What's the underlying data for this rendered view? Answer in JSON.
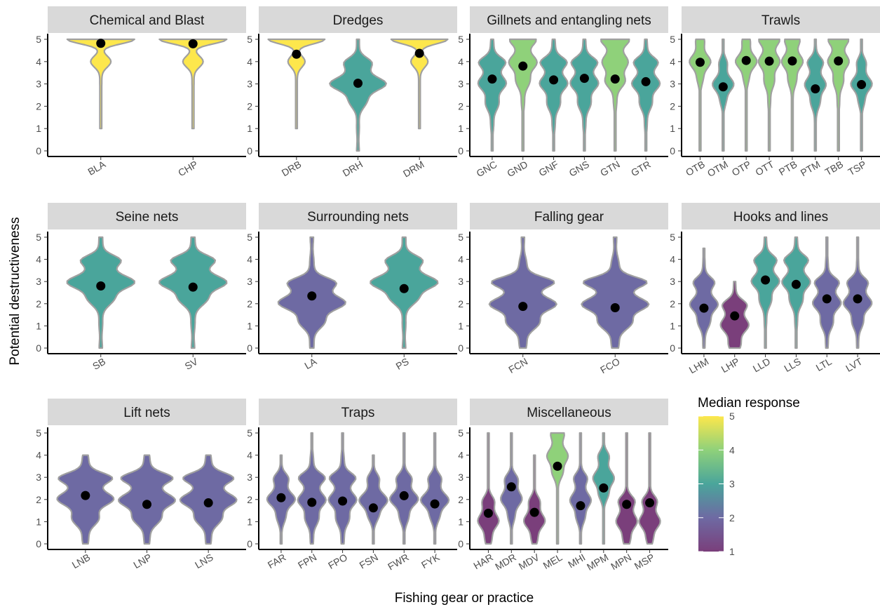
{
  "chart_data": {
    "type": "violin",
    "xlabel": "Fishing gear or practice",
    "ylabel": "Potential destructiveness",
    "ylim": [
      0,
      5
    ],
    "yticks": [
      0,
      1,
      2,
      3,
      4,
      5
    ],
    "legend": {
      "title": "Median response",
      "ticks": [
        1,
        2,
        3,
        4,
        5
      ],
      "range": [
        1,
        5
      ],
      "colors": [
        "#7a3f7b",
        "#6e6aa3",
        "#4aa59b",
        "#8fd17a",
        "#fde74c"
      ],
      "placement": "bottom-right"
    },
    "point_color": "#000000",
    "violin_outline": "#a0a0a0",
    "panels": [
      {
        "title": "Chemical and Blast",
        "categories": [
          "BLA",
          "CHP"
        ],
        "medians": [
          5,
          5
        ],
        "means": [
          4.82,
          4.8
        ],
        "ranges": [
          [
            1,
            5
          ],
          [
            1,
            5
          ]
        ]
      },
      {
        "title": "Dredges",
        "categories": [
          "DRB",
          "DRH",
          "DRM"
        ],
        "medians": [
          5,
          3,
          5
        ],
        "means": [
          4.33,
          3.03,
          4.37
        ],
        "ranges": [
          [
            1,
            5
          ],
          [
            0,
            5
          ],
          [
            1,
            5
          ]
        ]
      },
      {
        "title": "Gillnets and entangling nets",
        "categories": [
          "GNC",
          "GND",
          "GNF",
          "GNS",
          "GTN",
          "GTR"
        ],
        "medians": [
          3,
          4,
          3,
          3,
          4,
          3
        ],
        "means": [
          3.22,
          3.8,
          3.18,
          3.25,
          3.22,
          3.1
        ],
        "ranges": [
          [
            0,
            5
          ],
          [
            0,
            5
          ],
          [
            0,
            5
          ],
          [
            0,
            5
          ],
          [
            0,
            5
          ],
          [
            0,
            5
          ]
        ]
      },
      {
        "title": "Trawls",
        "categories": [
          "OTB",
          "OTM",
          "OTP",
          "OTT",
          "PTB",
          "PTM",
          "TBB",
          "TSP"
        ],
        "medians": [
          4,
          3,
          4,
          4,
          4,
          3,
          4,
          3
        ],
        "means": [
          3.97,
          2.87,
          4.05,
          4.02,
          4.03,
          2.78,
          4.03,
          2.97
        ],
        "ranges": [
          [
            0,
            5
          ],
          [
            0,
            5
          ],
          [
            0,
            5
          ],
          [
            0,
            5
          ],
          [
            0,
            5
          ],
          [
            0,
            5
          ],
          [
            0,
            5
          ],
          [
            0,
            5
          ]
        ]
      },
      {
        "title": "Seine nets",
        "categories": [
          "SB",
          "SV"
        ],
        "medians": [
          3,
          3
        ],
        "means": [
          2.8,
          2.75
        ],
        "ranges": [
          [
            0,
            5
          ],
          [
            0,
            5
          ]
        ]
      },
      {
        "title": "Surrounding nets",
        "categories": [
          "LA",
          "PS"
        ],
        "medians": [
          2,
          3
        ],
        "means": [
          2.35,
          2.68
        ],
        "ranges": [
          [
            0,
            5
          ],
          [
            0,
            5
          ]
        ]
      },
      {
        "title": "Falling gear",
        "categories": [
          "FCN",
          "FCO"
        ],
        "medians": [
          2,
          2
        ],
        "means": [
          1.88,
          1.82
        ],
        "ranges": [
          [
            0,
            5
          ],
          [
            0,
            5
          ]
        ]
      },
      {
        "title": "Hooks and lines",
        "categories": [
          "LHM",
          "LHP",
          "LLD",
          "LLS",
          "LTL",
          "LVT"
        ],
        "medians": [
          2,
          1,
          3,
          3,
          2,
          2
        ],
        "means": [
          1.8,
          1.45,
          3.07,
          2.87,
          2.22,
          2.22
        ],
        "ranges": [
          [
            0,
            4.5
          ],
          [
            0,
            3
          ],
          [
            0,
            5
          ],
          [
            0,
            5
          ],
          [
            0,
            5
          ],
          [
            0,
            5
          ]
        ]
      },
      {
        "title": "Lift nets",
        "categories": [
          "LNB",
          "LNP",
          "LNS"
        ],
        "medians": [
          2,
          2,
          2
        ],
        "means": [
          2.18,
          1.78,
          1.85
        ],
        "ranges": [
          [
            0,
            4
          ],
          [
            0,
            4
          ],
          [
            0,
            4
          ]
        ]
      },
      {
        "title": "Traps",
        "categories": [
          "FAR",
          "FPN",
          "FPO",
          "FSN",
          "FWR",
          "FYK"
        ],
        "medians": [
          2,
          2,
          2,
          2,
          2,
          2
        ],
        "means": [
          2.08,
          1.87,
          1.93,
          1.62,
          2.17,
          1.8
        ],
        "ranges": [
          [
            0,
            4
          ],
          [
            0,
            5
          ],
          [
            0,
            5
          ],
          [
            0,
            4
          ],
          [
            0,
            5
          ],
          [
            0,
            5
          ]
        ]
      },
      {
        "title": "Miscellaneous",
        "categories": [
          "HAR",
          "MDR",
          "MDV",
          "MEL",
          "MHI",
          "MPM",
          "MPN",
          "MSP"
        ],
        "medians": [
          1,
          2,
          1,
          4,
          2,
          3,
          1,
          1
        ],
        "means": [
          1.38,
          2.57,
          1.42,
          3.5,
          1.72,
          2.52,
          1.78,
          1.85
        ],
        "ranges": [
          [
            0,
            5
          ],
          [
            0,
            5
          ],
          [
            0,
            4
          ],
          [
            0,
            5
          ],
          [
            0,
            5
          ],
          [
            0,
            5
          ],
          [
            0,
            5
          ],
          [
            0,
            5
          ]
        ]
      }
    ]
  }
}
